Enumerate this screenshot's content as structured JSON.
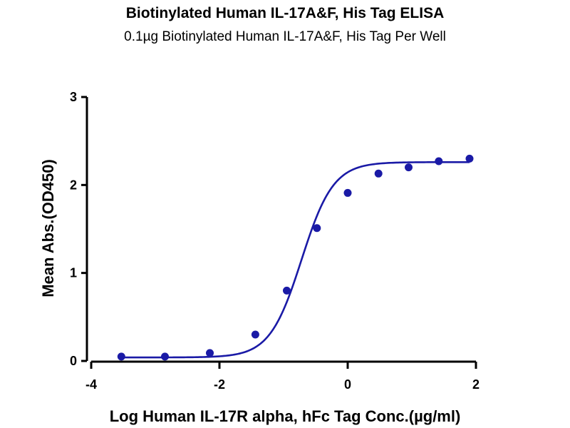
{
  "chart_data": {
    "type": "scatter",
    "title": "Biotinylated Human IL-17A&F, His Tag ELISA",
    "subtitle": "0.1µg Biotinylated Human IL-17A&F, His Tag Per Well",
    "xlabel": "Log Human IL-17R alpha, hFc Tag Conc.(µg/ml)",
    "ylabel": "Mean Abs.(OD450)",
    "xlim": [
      -4,
      2
    ],
    "ylim": [
      0,
      3
    ],
    "x_ticks": [
      -4,
      -2,
      0,
      2
    ],
    "y_ticks": [
      0,
      1,
      2,
      3
    ],
    "x_tick_labels": [
      "-4",
      "-2",
      "0",
      "2"
    ],
    "y_tick_labels": [
      "0",
      "1",
      "2",
      "3"
    ],
    "grid": false,
    "series": [
      {
        "color": "#1a1aa6",
        "x": [
          -3.53,
          -2.85,
          -2.15,
          -1.44,
          -0.95,
          -0.48,
          0.0,
          0.48,
          0.95,
          1.42,
          1.9
        ],
        "y": [
          0.05,
          0.05,
          0.09,
          0.3,
          0.8,
          1.51,
          1.91,
          2.13,
          2.2,
          2.27,
          2.3
        ]
      }
    ],
    "fit_curve": {
      "model": "4PL",
      "bottom": 0.04,
      "top": 2.26,
      "logEC50": -0.72,
      "hill": 1.75,
      "color": "#1a1aa6"
    }
  }
}
